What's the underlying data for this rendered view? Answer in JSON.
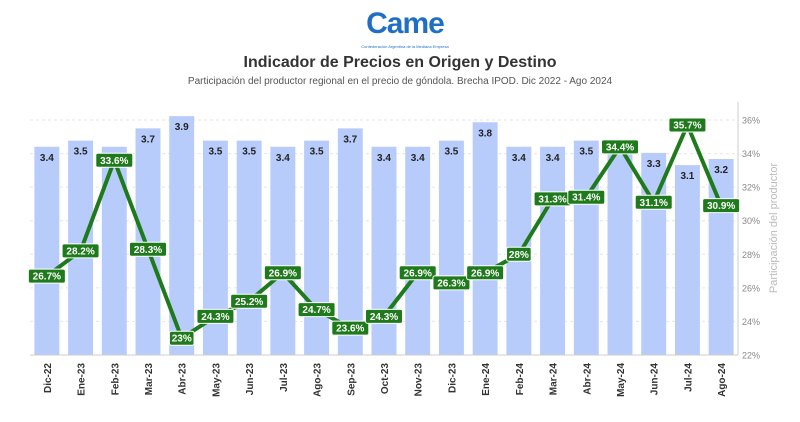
{
  "header": {
    "logo_text": "Came",
    "logo_subtitle": "Confederación Argentina de la Mediana Empresa",
    "title": "Indicador de Precios en Origen y Destino",
    "subtitle": "Participación del productor regional en el precio de góndola. Brecha IPOD. Dic 2022 - Ago 2024"
  },
  "colors": {
    "bar": "#b7ccfb",
    "line": "#1e7a1a",
    "label_bg": "#1e7a1a",
    "label_text": "#ffffff"
  },
  "chart_data": {
    "type": "bar",
    "title": "Indicador de Precios en Origen y Destino",
    "subtitle": "Participación del productor regional en el precio de góndola. Brecha IPOD. Dic 2022 - Ago 2024",
    "categories": [
      "Dic-22",
      "Ene-23",
      "Feb-23",
      "Mar-23",
      "Abr-23",
      "May-23",
      "Jun-23",
      "Jul-23",
      "Ago-23",
      "Sep-23",
      "Oct-23",
      "Nov-23",
      "Dic-23",
      "Ene-24",
      "Feb-24",
      "Mar-24",
      "Abr-24",
      "May-24",
      "Jun-24",
      "Jul-24",
      "Ago-24"
    ],
    "series": [
      {
        "type": "bar",
        "axis": "left-hidden",
        "values": [
          3.4,
          3.5,
          3.4,
          3.7,
          3.9,
          3.5,
          3.5,
          3.4,
          3.5,
          3.7,
          3.4,
          3.4,
          3.5,
          3.8,
          3.4,
          3.4,
          3.5,
          3.4,
          3.3,
          3.1,
          3.2
        ],
        "labels": [
          "3.4",
          "3.5",
          "",
          "3.7",
          "3.9",
          "3.5",
          "3.5",
          "3.4",
          "3.5",
          "3.7",
          "3.4",
          "3.4",
          "3.5",
          "3.8",
          "3.4",
          "3.4",
          "3.5",
          "",
          "3.3",
          "3.1",
          "3.2"
        ]
      },
      {
        "type": "line",
        "axis": "right",
        "values": [
          26.7,
          28.2,
          33.6,
          28.3,
          23.0,
          24.3,
          25.2,
          26.9,
          24.7,
          23.6,
          24.3,
          26.9,
          26.3,
          26.9,
          28.0,
          31.3,
          31.4,
          34.4,
          31.1,
          35.7,
          30.9
        ],
        "labels": [
          "26.7%",
          "28.2%",
          "33.6%",
          "28.3%",
          "23%",
          "24.3%",
          "25.2%",
          "26.9%",
          "24.7%",
          "23.6%",
          "24.3%",
          "26.9%",
          "26.3%",
          "26.9%",
          "28%",
          "31.3%",
          "31.4%",
          "34.4%",
          "31.1%",
          "35.7%",
          "30.9%"
        ]
      }
    ],
    "y_right": {
      "label": "Participación del productor",
      "ticks": [
        "22%",
        "24%",
        "26%",
        "28%",
        "30%",
        "32%",
        "34%",
        "36%"
      ],
      "range": [
        22,
        36
      ]
    },
    "grid": true
  }
}
